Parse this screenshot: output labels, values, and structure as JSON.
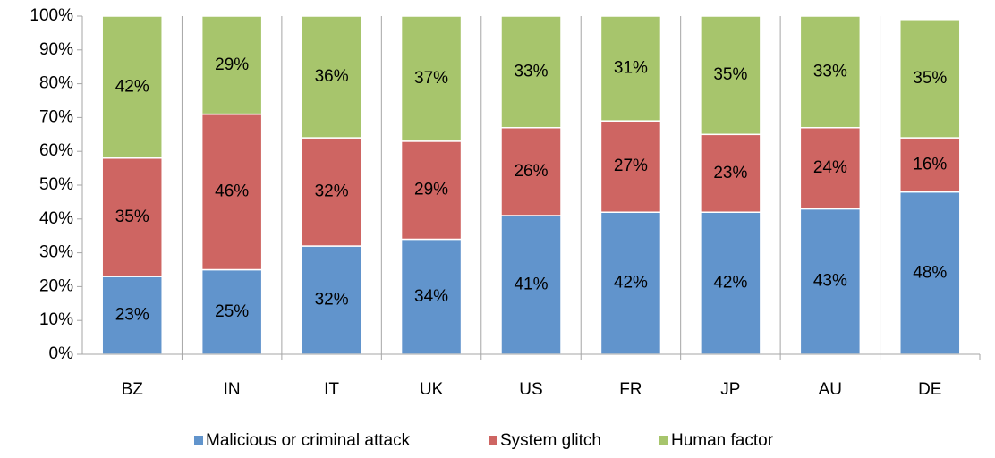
{
  "chart_data": {
    "type": "stacked_bar",
    "categories": [
      "BZ",
      "IN",
      "IT",
      "UK",
      "US",
      "FR",
      "JP",
      "AU",
      "DE"
    ],
    "series": [
      {
        "name": "Malicious or criminal attack",
        "color": "#6194cc",
        "values": [
          23,
          25,
          32,
          34,
          41,
          42,
          42,
          43,
          48
        ],
        "value_labels": [
          "23%",
          "25%",
          "32%",
          "34%",
          "41%",
          "42%",
          "42%",
          "43%",
          "48%"
        ]
      },
      {
        "name": "System glitch",
        "color": "#ce6562",
        "values": [
          35,
          46,
          32,
          29,
          26,
          27,
          23,
          24,
          16
        ],
        "value_labels": [
          "35%",
          "46%",
          "32%",
          "29%",
          "26%",
          "27%",
          "23%",
          "24%",
          "16%"
        ]
      },
      {
        "name": "Human factor",
        "color": "#a7c56c",
        "values": [
          42,
          29,
          36,
          37,
          33,
          31,
          35,
          33,
          35
        ],
        "value_labels": [
          "42%",
          "29%",
          "36%",
          "37%",
          "33%",
          "31%",
          "35%",
          "33%",
          "35%"
        ]
      }
    ],
    "ylim": [
      0,
      100
    ],
    "yticks": [
      {
        "value": 0,
        "label": "0%"
      },
      {
        "value": 10,
        "label": "10%"
      },
      {
        "value": 20,
        "label": "20%"
      },
      {
        "value": 30,
        "label": "30%"
      },
      {
        "value": 40,
        "label": "40%"
      },
      {
        "value": 50,
        "label": "50%"
      },
      {
        "value": 60,
        "label": "60%"
      },
      {
        "value": 70,
        "label": "70%"
      },
      {
        "value": 80,
        "label": "80%"
      },
      {
        "value": 90,
        "label": "90%"
      },
      {
        "value": 100,
        "label": "100%"
      }
    ],
    "legend": "bottom"
  }
}
